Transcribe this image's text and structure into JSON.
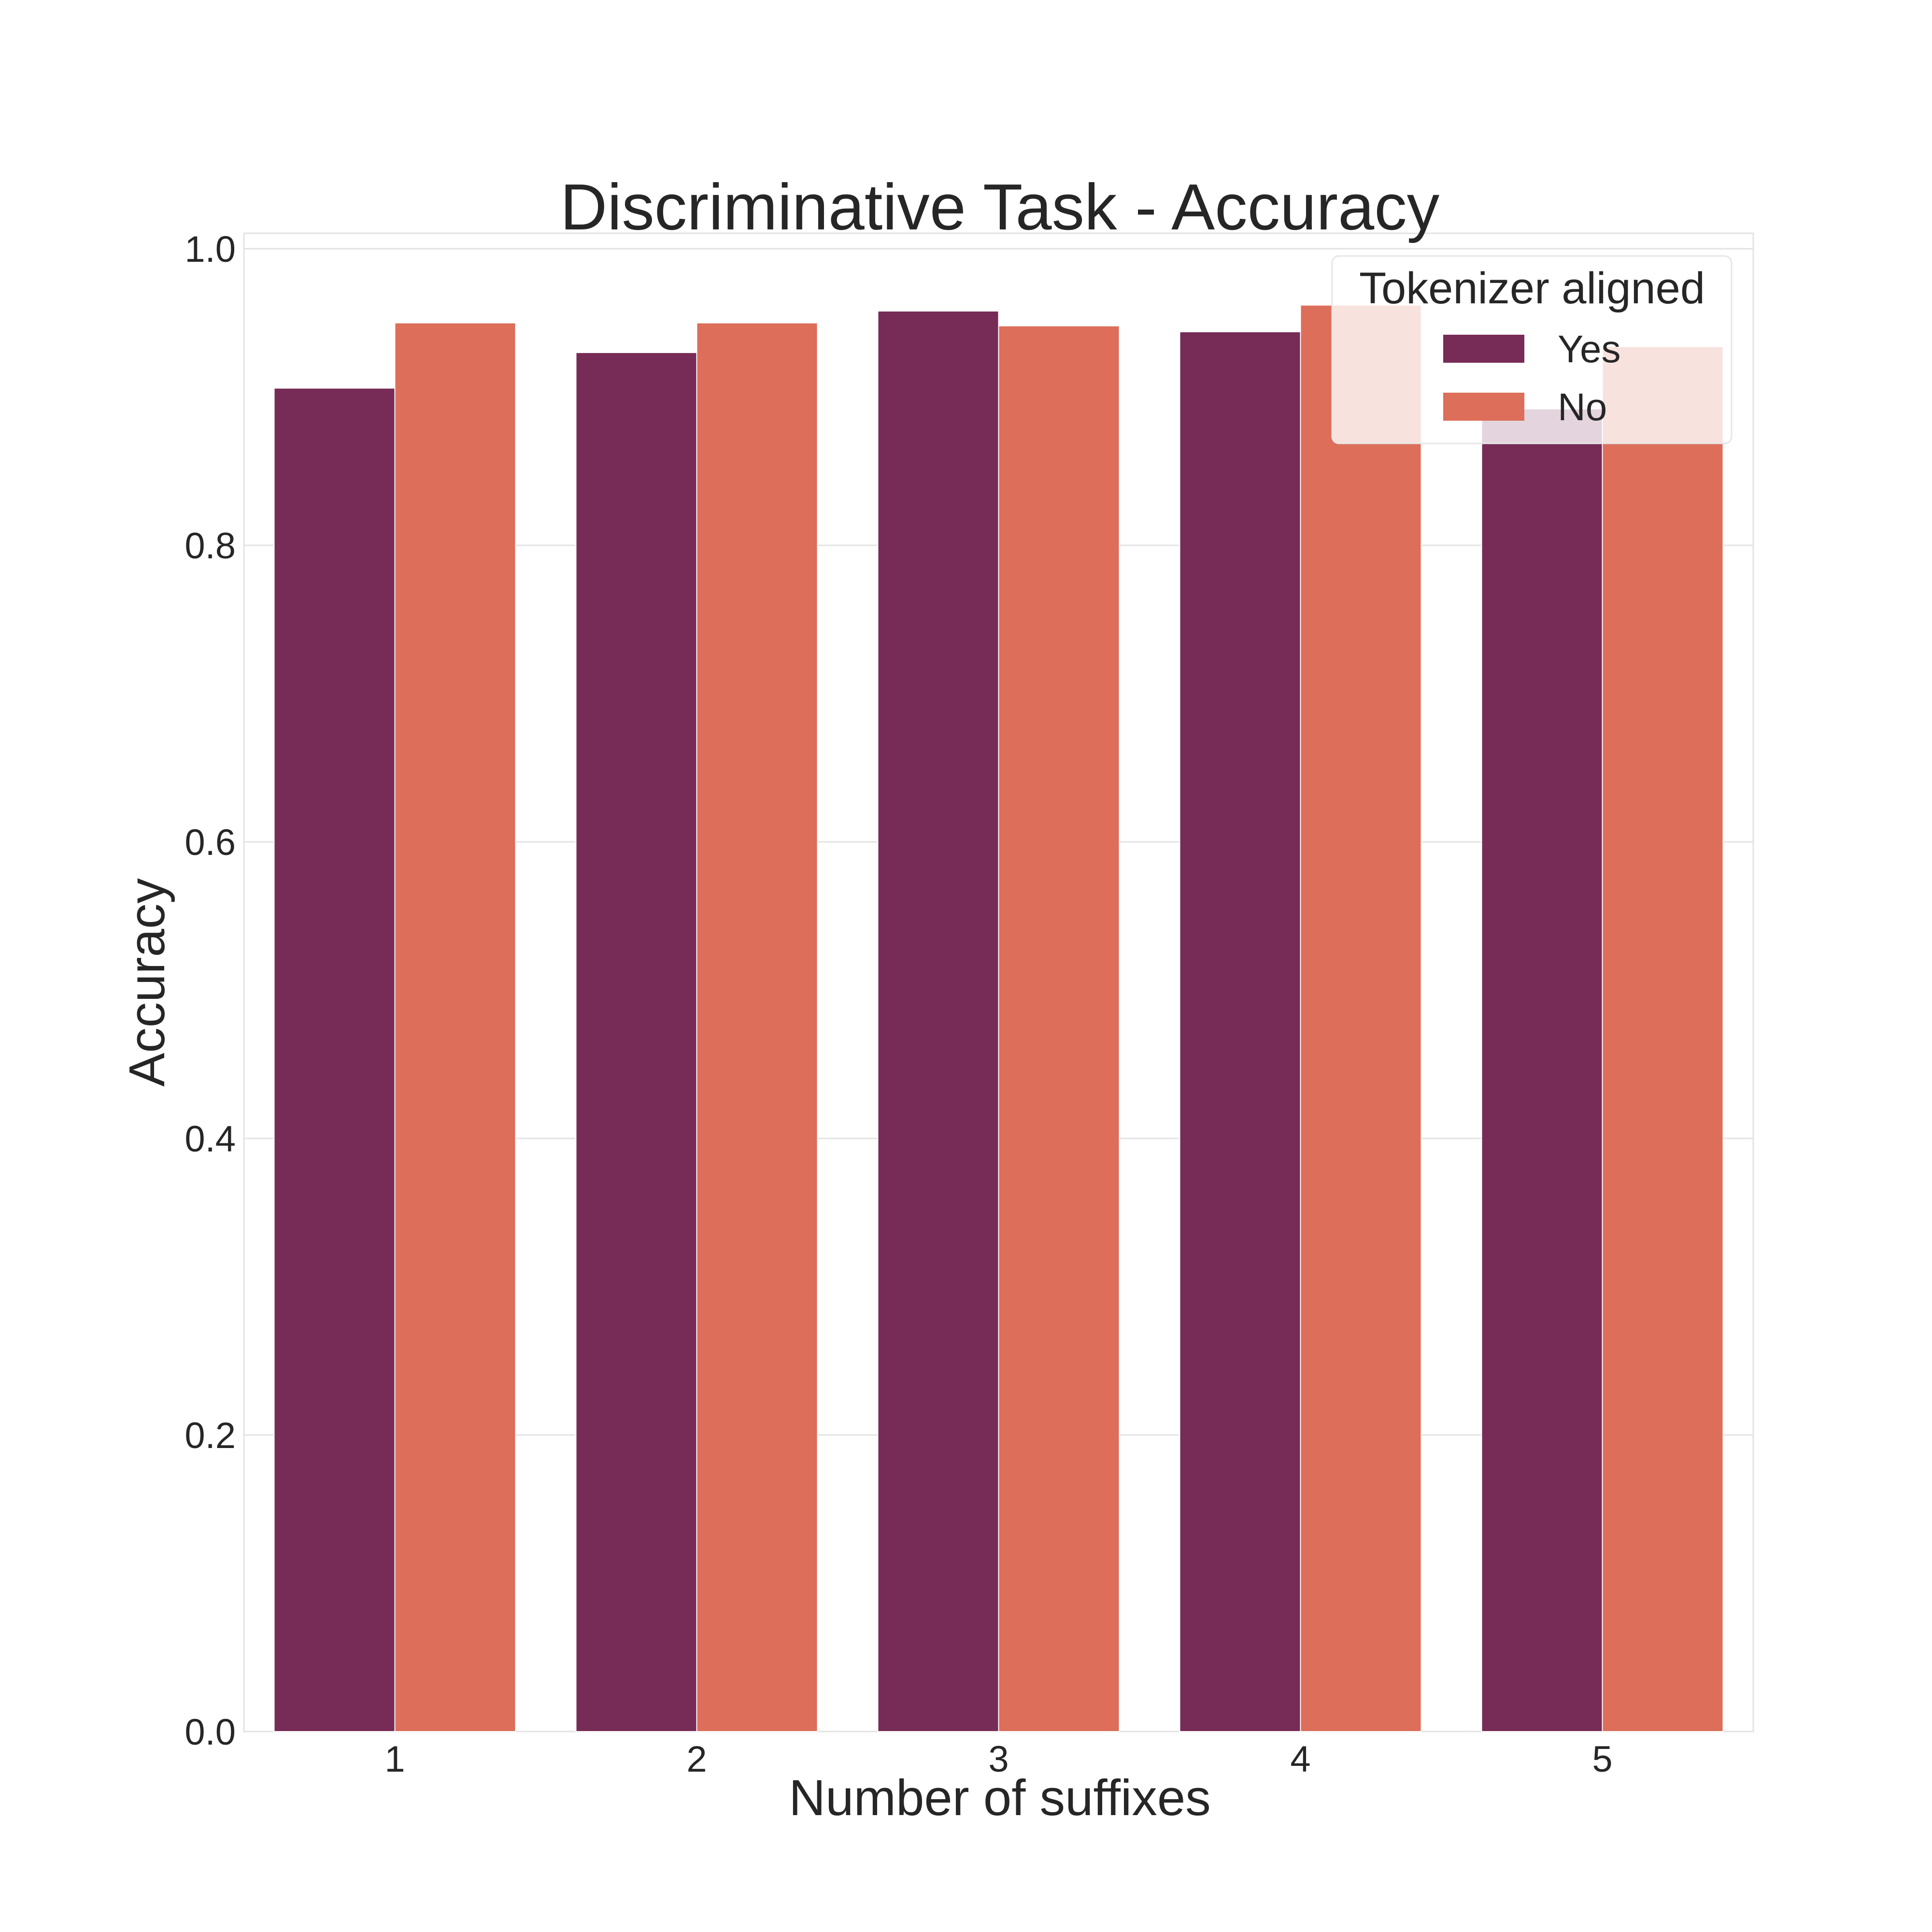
{
  "chart_data": {
    "type": "bar",
    "title": "Discriminative Task - Accuracy",
    "xlabel": "Number of suffixes",
    "ylabel": "Accuracy",
    "categories": [
      "1",
      "2",
      "3",
      "4",
      "5"
    ],
    "ylim": [
      0,
      1.0
    ],
    "yticks": [
      "0.0",
      "0.2",
      "0.4",
      "0.6",
      "0.8",
      "1.0"
    ],
    "grid": true,
    "legend": {
      "title": "Tokenizer aligned",
      "placement": "top-right"
    },
    "series": [
      {
        "name": "Yes",
        "color": "#772b57",
        "values": [
          0.906,
          0.93,
          0.958,
          0.944,
          0.892
        ]
      },
      {
        "name": "No",
        "color": "#dc6e5a",
        "values": [
          0.95,
          0.95,
          0.948,
          0.962,
          0.934
        ]
      }
    ]
  }
}
